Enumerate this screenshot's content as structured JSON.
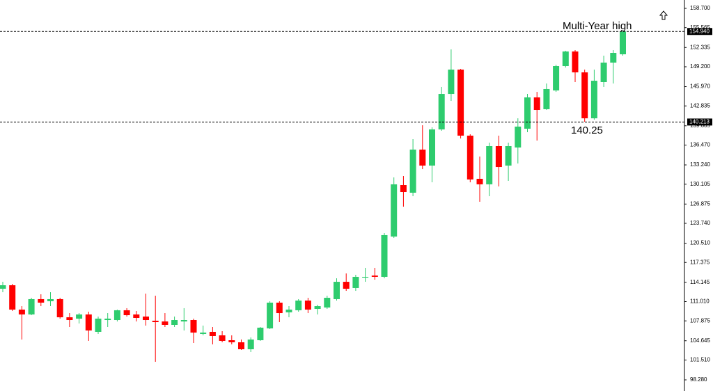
{
  "chart_data": {
    "type": "candlestick",
    "up_color": "#2ecc6e",
    "down_color": "#ff0000",
    "ylim": [
      96.47,
      160.06
    ],
    "yticks": [
      {
        "value": 158.7,
        "label": "158.700"
      },
      {
        "value": 155.565,
        "label": "155.565"
      },
      {
        "value": 152.335,
        "label": "152.335"
      },
      {
        "value": 149.2,
        "label": "149.200"
      },
      {
        "value": 145.97,
        "label": "145.970"
      },
      {
        "value": 142.835,
        "label": "142.835"
      },
      {
        "value": 139.605,
        "label": "139.605"
      },
      {
        "value": 136.47,
        "label": "136.470"
      },
      {
        "value": 133.24,
        "label": "133.240"
      },
      {
        "value": 130.105,
        "label": "130.105"
      },
      {
        "value": 126.875,
        "label": "126.875"
      },
      {
        "value": 123.74,
        "label": "123.740"
      },
      {
        "value": 120.51,
        "label": "120.510"
      },
      {
        "value": 117.375,
        "label": "117.375"
      },
      {
        "value": 114.145,
        "label": "114.145"
      },
      {
        "value": 111.01,
        "label": "111.010"
      },
      {
        "value": 107.875,
        "label": "107.875"
      },
      {
        "value": 104.645,
        "label": "104.645"
      },
      {
        "value": 101.51,
        "label": "101.510"
      },
      {
        "value": 98.28,
        "label": "98.280"
      }
    ],
    "levels": [
      {
        "value": 154.94,
        "label": "154.940"
      },
      {
        "value": 140.213,
        "label": "140.213"
      }
    ],
    "annotations": [
      {
        "text": "Multi-Year high",
        "value": 154.94
      },
      {
        "text": "140.25",
        "value": 140.25
      }
    ],
    "open": [
      113.1,
      113.67,
      109.71,
      108.92,
      111.41,
      111.07,
      111.41,
      108.46,
      108.24,
      108.92,
      106.09,
      108.01,
      108.01,
      109.6,
      108.92,
      108.58,
      107.9,
      107.78,
      107.22,
      107.78,
      108.01,
      105.75,
      106.09,
      105.52,
      104.73,
      104.39,
      103.26,
      104.73,
      106.65,
      110.84,
      109.26,
      109.6,
      111.18,
      109.82,
      110.05,
      111.41,
      114.23,
      113.22,
      114.91,
      115.25,
      115.03,
      121.59,
      129.96,
      128.72,
      135.73,
      133.13,
      139.01,
      144.78,
      148.74,
      138.0,
      130.98,
      130.08,
      136.3,
      133.13,
      136.07,
      139.13,
      144.22,
      142.3,
      145.35,
      149.31,
      151.69,
      148.29,
      140.82,
      146.71,
      149.88,
      151.23
    ],
    "high": [
      114.23,
      113.89,
      110.27,
      111.63,
      112.2,
      112.54,
      111.63,
      109.14,
      109.14,
      109.37,
      108.58,
      109.14,
      109.71,
      109.94,
      109.48,
      112.31,
      111.97,
      109.14,
      108.58,
      109.94,
      108.24,
      107.11,
      106.88,
      106.2,
      105.52,
      104.84,
      105.18,
      106.88,
      111.07,
      111.07,
      110.27,
      111.41,
      111.63,
      110.5,
      111.97,
      114.8,
      115.59,
      115.37,
      116.5,
      116.5,
      122.15,
      131.21,
      131.43,
      137.43,
      139.69,
      139.35,
      145.92,
      152.03,
      148.86,
      138.22,
      134.6,
      136.86,
      138.0,
      136.86,
      140.82,
      144.78,
      145.12,
      146.48,
      149.54,
      151.8,
      151.91,
      148.74,
      148.74,
      151.01,
      151.91,
      154.94
    ],
    "low": [
      112.54,
      109.48,
      104.84,
      108.8,
      110.27,
      110.27,
      108.24,
      106.88,
      107.45,
      104.62,
      105.75,
      106.88,
      107.78,
      108.58,
      107.78,
      107.11,
      101.22,
      106.88,
      106.88,
      106.31,
      104.28,
      105.52,
      104.05,
      104.39,
      104.05,
      103.15,
      102.81,
      104.62,
      106.54,
      107.67,
      108.46,
      109.37,
      109.14,
      108.92,
      109.82,
      111.18,
      112.76,
      112.76,
      114.23,
      114.57,
      114.8,
      121.36,
      126.45,
      128.15,
      132.56,
      130.41,
      138.79,
      143.65,
      137.54,
      130.41,
      127.25,
      128.15,
      129.74,
      130.64,
      133.47,
      138.56,
      137.2,
      142.18,
      145.12,
      149.08,
      146.71,
      140.25,
      140.6,
      145.92,
      146.48,
      151.01
    ],
    "close": [
      113.67,
      109.71,
      108.92,
      111.41,
      110.84,
      111.41,
      108.46,
      108.01,
      108.92,
      106.31,
      108.24,
      108.24,
      109.6,
      108.8,
      108.35,
      108.01,
      107.67,
      107.22,
      108.01,
      108.01,
      105.97,
      105.97,
      105.41,
      104.62,
      104.39,
      103.26,
      104.84,
      106.77,
      110.84,
      109.14,
      109.71,
      111.18,
      109.71,
      110.27,
      111.63,
      114.23,
      113.1,
      115.03,
      115.03,
      115.03,
      121.82,
      130.08,
      128.83,
      135.73,
      133.13,
      139.01,
      144.78,
      148.74,
      138.0,
      130.87,
      130.08,
      136.3,
      132.9,
      136.3,
      139.47,
      144.22,
      142.18,
      145.58,
      149.31,
      151.69,
      148.29,
      140.82,
      146.93,
      149.88,
      151.46,
      154.94
    ]
  }
}
